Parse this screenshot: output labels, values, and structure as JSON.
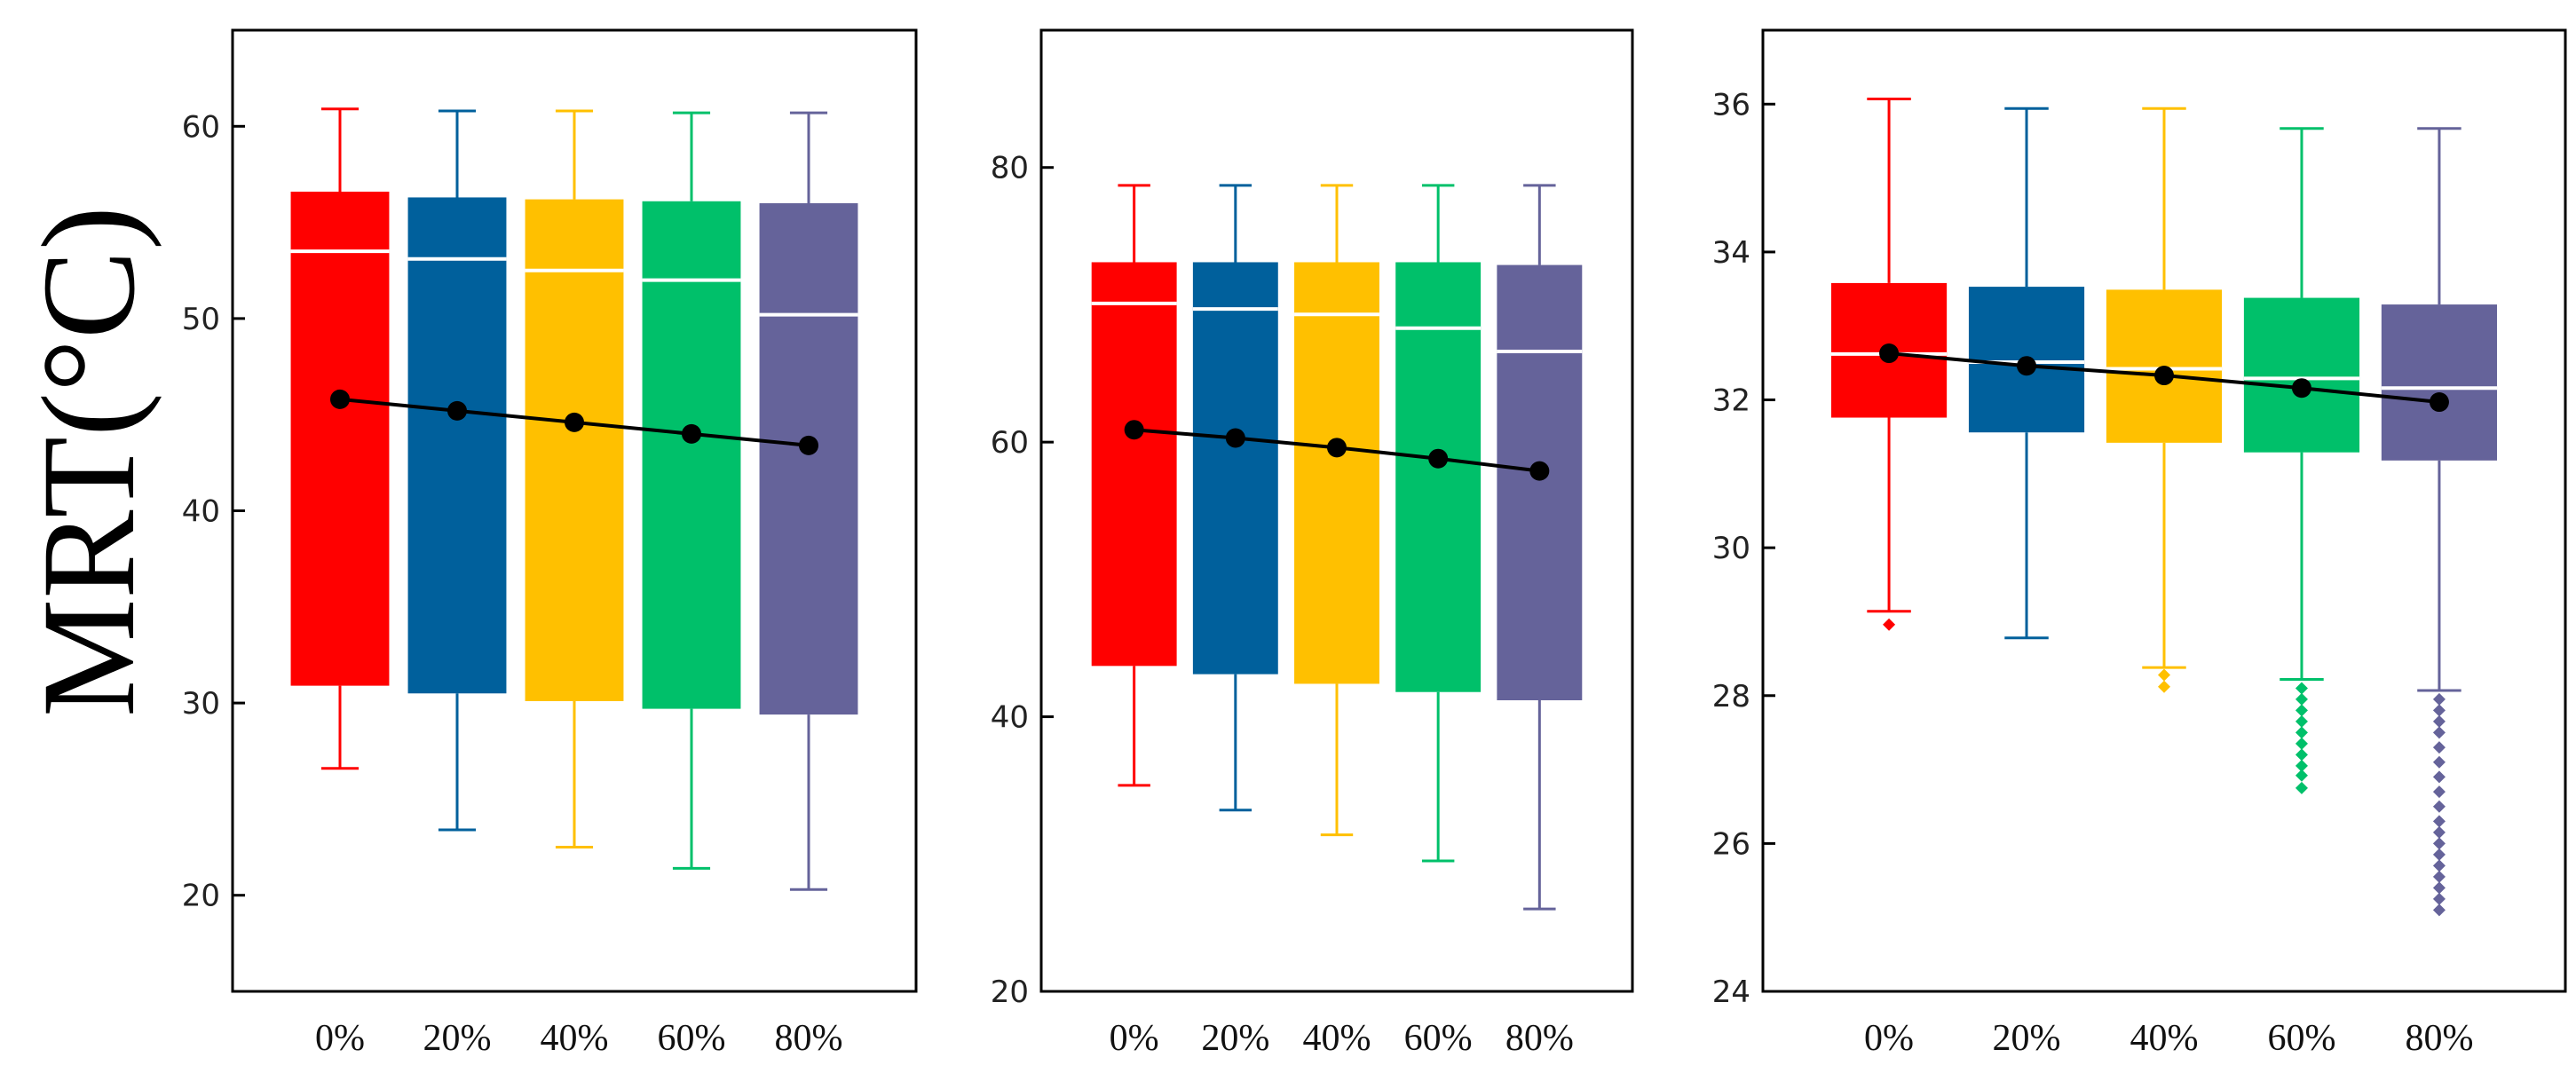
{
  "ylabel": "MRT(°C)",
  "chart_data": [
    {
      "type": "box",
      "categories": [
        "0%",
        "20%",
        "40%",
        "60%",
        "80%"
      ],
      "ylim": [
        15,
        65
      ],
      "yticks": [
        20,
        30,
        40,
        50,
        60
      ],
      "colors": [
        "#ff0000",
        "#00609c",
        "#ffc000",
        "#00c06a",
        "#65639a"
      ],
      "boxes": [
        {
          "q1": 30.9,
          "median": 53.5,
          "q3": 56.6,
          "whisker_low": 26.6,
          "whisker_high": 60.9,
          "outliers": []
        },
        {
          "q1": 30.5,
          "median": 53.1,
          "q3": 56.3,
          "whisker_low": 23.4,
          "whisker_high": 60.8,
          "outliers": []
        },
        {
          "q1": 30.1,
          "median": 52.5,
          "q3": 56.2,
          "whisker_low": 22.5,
          "whisker_high": 60.8,
          "outliers": []
        },
        {
          "q1": 29.7,
          "median": 52.0,
          "q3": 56.1,
          "whisker_low": 21.4,
          "whisker_high": 60.7,
          "outliers": []
        },
        {
          "q1": 29.4,
          "median": 50.2,
          "q3": 56.0,
          "whisker_low": 20.3,
          "whisker_high": 60.7,
          "outliers": []
        }
      ],
      "means": [
        45.8,
        45.2,
        44.6,
        44.0,
        43.4
      ]
    },
    {
      "type": "box",
      "categories": [
        "0%",
        "20%",
        "40%",
        "60%",
        "80%"
      ],
      "ylim": [
        20,
        90
      ],
      "yticks": [
        20,
        40,
        60,
        80
      ],
      "colors": [
        "#ff0000",
        "#00609c",
        "#ffc000",
        "#00c06a",
        "#65639a"
      ],
      "boxes": [
        {
          "q1": 43.7,
          "median": 70.1,
          "q3": 73.1,
          "whisker_low": 35.0,
          "whisker_high": 78.7,
          "outliers": []
        },
        {
          "q1": 43.1,
          "median": 69.7,
          "q3": 73.1,
          "whisker_low": 33.2,
          "whisker_high": 78.7,
          "outliers": []
        },
        {
          "q1": 42.4,
          "median": 69.3,
          "q3": 73.1,
          "whisker_low": 31.4,
          "whisker_high": 78.7,
          "outliers": []
        },
        {
          "q1": 41.8,
          "median": 68.3,
          "q3": 73.1,
          "whisker_low": 29.5,
          "whisker_high": 78.7,
          "outliers": []
        },
        {
          "q1": 41.2,
          "median": 66.6,
          "q3": 72.9,
          "whisker_low": 26.0,
          "whisker_high": 78.7,
          "outliers": []
        }
      ],
      "means": [
        60.9,
        60.3,
        59.6,
        58.8,
        57.9
      ]
    },
    {
      "type": "box",
      "categories": [
        "0%",
        "20%",
        "40%",
        "60%",
        "80%"
      ],
      "ylim": [
        24,
        37
      ],
      "yticks": [
        24,
        26,
        28,
        30,
        32,
        34,
        36
      ],
      "colors": [
        "#ff0000",
        "#00609c",
        "#ffc000",
        "#00c06a",
        "#65639a"
      ],
      "boxes": [
        {
          "q1": 31.76,
          "median": 32.62,
          "q3": 33.58,
          "whisker_low": 29.14,
          "whisker_high": 36.07,
          "outliers": [
            28.96
          ]
        },
        {
          "q1": 31.56,
          "median": 32.51,
          "q3": 33.53,
          "whisker_low": 28.78,
          "whisker_high": 35.94,
          "outliers": []
        },
        {
          "q1": 31.42,
          "median": 32.42,
          "q3": 33.49,
          "whisker_low": 28.38,
          "whisker_high": 35.94,
          "outliers": [
            28.28,
            28.12
          ]
        },
        {
          "q1": 31.29,
          "median": 32.29,
          "q3": 33.38,
          "whisker_low": 28.22,
          "whisker_high": 35.67,
          "outliers": [
            28.1,
            27.95,
            27.8,
            27.65,
            27.5,
            27.35,
            27.2,
            27.05,
            26.92,
            26.75
          ]
        },
        {
          "q1": 31.18,
          "median": 32.16,
          "q3": 33.29,
          "whisker_low": 28.07,
          "whisker_high": 35.67,
          "outliers": [
            27.95,
            27.8,
            27.65,
            27.5,
            27.3,
            27.1,
            26.9,
            26.7,
            26.5,
            26.3,
            26.15,
            26.0,
            25.85,
            25.7,
            25.55,
            25.4,
            25.25,
            25.1
          ]
        }
      ],
      "means": [
        32.63,
        32.46,
        32.33,
        32.16,
        31.97
      ]
    }
  ]
}
